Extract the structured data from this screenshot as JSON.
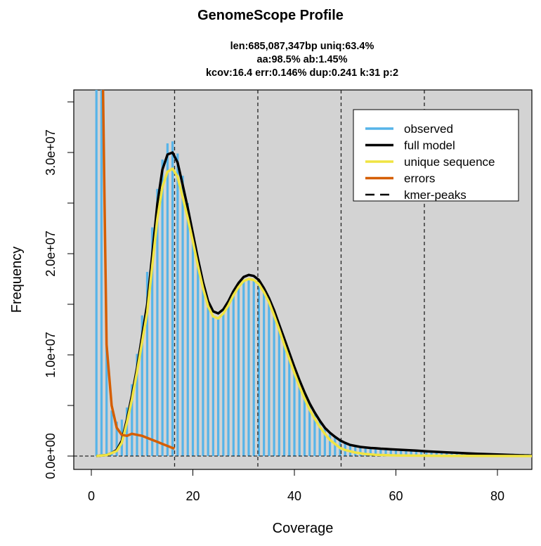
{
  "chart_data": {
    "type": "bar",
    "title": "GenomeScope Profile",
    "subtitle_lines": [
      "len:685,087,347bp uniq:63.4%",
      "aa:98.5% ab:1.45%",
      "kcov:16.4 err:0.146%  dup:0.241  k:31 p:2"
    ],
    "xlabel": "Coverage",
    "ylabel": "Frequency",
    "xlim": [
      -3.5,
      86.8
    ],
    "ylim": [
      -1300000.0,
      36200000.0
    ],
    "x_ticks": [
      0,
      20,
      40,
      60,
      80
    ],
    "x_tick_labels": [
      "0",
      "20",
      "40",
      "60",
      "80"
    ],
    "y_ticks": [
      0,
      10000000,
      20000000,
      30000000
    ],
    "y_tick_labels": [
      "0.0e+00",
      "1.0e+07",
      "2.0e+07",
      "3.0e+07"
    ],
    "y_value_multiplier": 10000000,
    "legend_position": "top-right",
    "legend": [
      {
        "label": "observed",
        "color": "#56B4E9",
        "style": "solid"
      },
      {
        "label": "full model",
        "color": "#000000",
        "style": "solid"
      },
      {
        "label": "unique sequence",
        "color": "#F0E442",
        "style": "solid"
      },
      {
        "label": "errors",
        "color": "#D55E00",
        "style": "solid"
      },
      {
        "label": "kmer-peaks",
        "color": "#000000",
        "style": "dashed"
      }
    ],
    "kmer_peaks": [
      16.4,
      32.8,
      49.2,
      65.6
    ],
    "observed": {
      "x": [
        1,
        2,
        3,
        4,
        5,
        6,
        7,
        8,
        9,
        10,
        11,
        12,
        13,
        14,
        15,
        16,
        17,
        18,
        19,
        20,
        21,
        22,
        23,
        24,
        25,
        26,
        27,
        28,
        29,
        30,
        31,
        32,
        33,
        34,
        35,
        36,
        37,
        38,
        39,
        40,
        41,
        42,
        43,
        44,
        45,
        46,
        47,
        48,
        49,
        50,
        51,
        52,
        53,
        54,
        55,
        56,
        57,
        58,
        59,
        60,
        61,
        62,
        63,
        64,
        65,
        66,
        67,
        68,
        69,
        70,
        71,
        72,
        73,
        74,
        75,
        76,
        77,
        78,
        79,
        80,
        81,
        82,
        83,
        84,
        85,
        86
      ],
      "y": [
        10,
        6,
        1.1,
        0.45,
        0.34,
        0.36,
        0.48,
        0.71,
        1.01,
        1.39,
        1.82,
        2.26,
        2.64,
        2.93,
        3.09,
        3.11,
        2.99,
        2.77,
        2.5,
        2.2,
        1.92,
        1.66,
        1.47,
        1.37,
        1.36,
        1.41,
        1.49,
        1.59,
        1.67,
        1.73,
        1.75,
        1.74,
        1.7,
        1.62,
        1.52,
        1.4,
        1.26,
        1.12,
        0.98,
        0.84,
        0.72,
        0.6,
        0.5,
        0.41,
        0.34,
        0.28,
        0.23,
        0.19,
        0.16,
        0.14,
        0.12,
        0.11,
        0.1,
        0.09,
        0.085,
        0.08,
        0.075,
        0.07,
        0.068,
        0.065,
        0.062,
        0.06,
        0.058,
        0.055,
        0.052,
        0.05,
        0.048,
        0.046,
        0.044,
        0.042,
        0.04,
        0.038,
        0.036,
        0.034,
        0.032,
        0.03,
        0.029,
        0.028,
        0.027,
        0.026,
        0.025,
        0.024,
        0.023,
        0.022,
        0.021,
        0.02
      ]
    },
    "full_model": {
      "x": [
        1,
        2,
        3,
        4,
        5,
        6,
        7,
        8,
        9,
        10,
        11,
        12,
        13,
        14,
        15,
        16,
        17,
        18,
        19,
        20,
        21,
        22,
        23,
        24,
        25,
        26,
        27,
        28,
        29,
        30,
        31,
        32,
        33,
        34,
        35,
        36,
        37,
        38,
        39,
        40,
        41,
        42,
        43,
        44,
        45,
        46,
        47,
        48,
        49,
        50,
        51,
        52,
        53,
        54,
        55,
        56,
        57,
        58,
        59,
        60,
        62,
        64,
        66,
        68,
        70,
        72,
        74,
        76,
        78,
        80,
        82,
        84,
        86,
        87
      ],
      "y": [
        0,
        0.005,
        0.01,
        0.03,
        0.06,
        0.15,
        0.36,
        0.6,
        0.87,
        1.19,
        1.5,
        1.99,
        2.49,
        2.83,
        2.98,
        3.0,
        2.9,
        2.68,
        2.45,
        2.2,
        1.95,
        1.72,
        1.53,
        1.43,
        1.41,
        1.45,
        1.53,
        1.63,
        1.71,
        1.77,
        1.79,
        1.78,
        1.74,
        1.66,
        1.56,
        1.44,
        1.3,
        1.16,
        1.02,
        0.88,
        0.75,
        0.63,
        0.52,
        0.43,
        0.35,
        0.28,
        0.23,
        0.19,
        0.155,
        0.13,
        0.11,
        0.1,
        0.09,
        0.085,
        0.08,
        0.077,
        0.073,
        0.07,
        0.067,
        0.064,
        0.059,
        0.054,
        0.047,
        0.042,
        0.037,
        0.032,
        0.027,
        0.023,
        0.019,
        0.015,
        0.012,
        0.009,
        0.006,
        0.005
      ]
    },
    "unique_sequence": {
      "x": [
        1,
        2,
        3,
        4,
        5,
        6,
        7,
        8,
        9,
        10,
        11,
        12,
        13,
        14,
        15,
        16,
        17,
        18,
        19,
        20,
        21,
        22,
        23,
        24,
        25,
        26,
        27,
        28,
        29,
        30,
        31,
        32,
        33,
        34,
        35,
        36,
        37,
        38,
        39,
        40,
        41,
        42,
        43,
        44,
        45,
        46,
        47,
        48,
        49,
        50,
        52,
        54,
        56,
        60,
        70,
        87
      ],
      "y": [
        0,
        0.005,
        0.01,
        0.03,
        0.05,
        0.13,
        0.33,
        0.56,
        0.83,
        1.13,
        1.42,
        1.88,
        2.34,
        2.66,
        2.81,
        2.84,
        2.76,
        2.56,
        2.35,
        2.12,
        1.88,
        1.66,
        1.48,
        1.38,
        1.36,
        1.41,
        1.49,
        1.59,
        1.67,
        1.73,
        1.75,
        1.74,
        1.7,
        1.62,
        1.52,
        1.39,
        1.25,
        1.1,
        0.96,
        0.82,
        0.69,
        0.57,
        0.46,
        0.37,
        0.29,
        0.22,
        0.16,
        0.12,
        0.08,
        0.06,
        0.035,
        0.02,
        0.012,
        0.006,
        0.002,
        0
      ]
    },
    "errors": {
      "x": [
        2.2,
        2.6,
        3,
        4,
        5,
        6,
        7,
        8,
        9,
        10,
        11,
        12,
        13,
        14,
        15,
        16,
        16.4
      ],
      "y": [
        4.0,
        2.5,
        1.1,
        0.5,
        0.28,
        0.21,
        0.2,
        0.22,
        0.21,
        0.2,
        0.18,
        0.16,
        0.14,
        0.12,
        0.1,
        0.08,
        0.075
      ]
    }
  }
}
